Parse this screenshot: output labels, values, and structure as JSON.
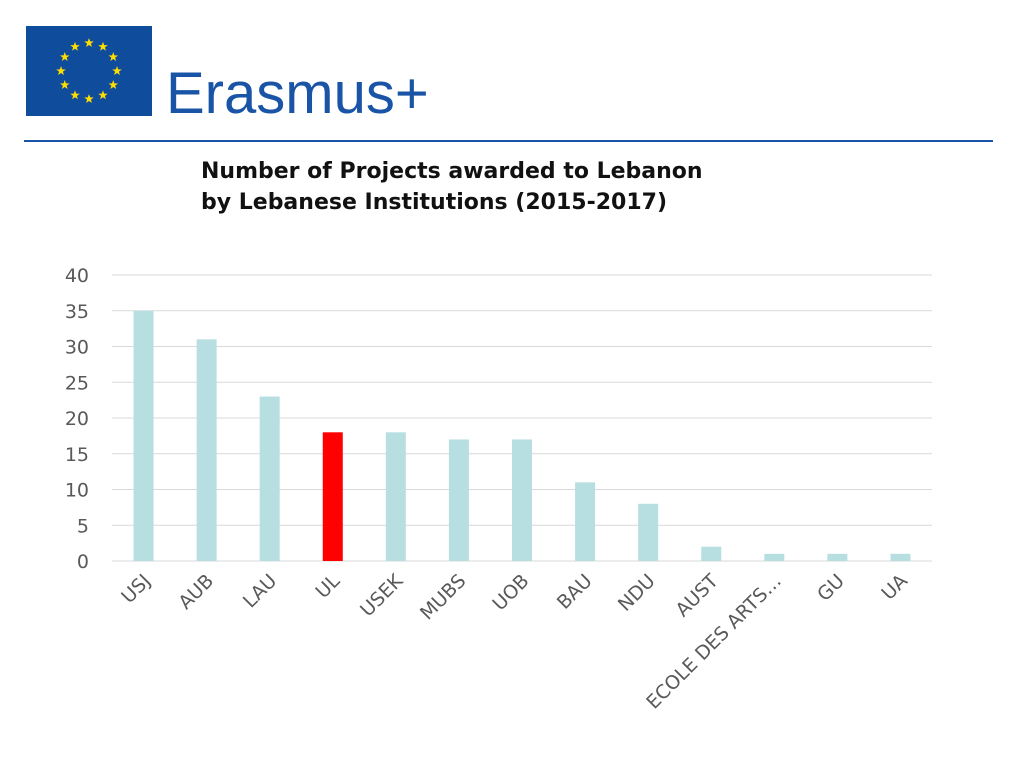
{
  "logo": {
    "brand_text": "Erasmus+",
    "flag_icon": "eu-flag-icon",
    "colors": {
      "flag_blue": "#0f4c9c",
      "stars": "#ffdd00",
      "brand": "#1a54a6",
      "rule": "#1a54a6"
    }
  },
  "chart_data": {
    "type": "bar",
    "title_lines": [
      "Number of Projects awarded to Lebanon",
      "by Lebanese Institutions (2015-2017)"
    ],
    "categories": [
      "USJ",
      "AUB",
      "LAU",
      "UL",
      "USEK",
      "MUBS",
      "UOB",
      "BAU",
      "NDU",
      "AUST",
      "ECOLE DES ARTS…",
      "GU",
      "UA"
    ],
    "values": [
      35,
      31,
      23,
      18,
      18,
      17,
      17,
      11,
      8,
      2,
      1,
      1,
      1
    ],
    "highlight_category": "UL",
    "colors": {
      "bar": "#b7dfe2",
      "highlight": "#ff0000",
      "grid": "#d9d9d9",
      "tick_text": "#595959"
    },
    "yticks": [
      0,
      5,
      10,
      15,
      20,
      25,
      30,
      35,
      40
    ],
    "ylim": [
      0,
      40
    ],
    "grid": true,
    "legend": "none"
  }
}
